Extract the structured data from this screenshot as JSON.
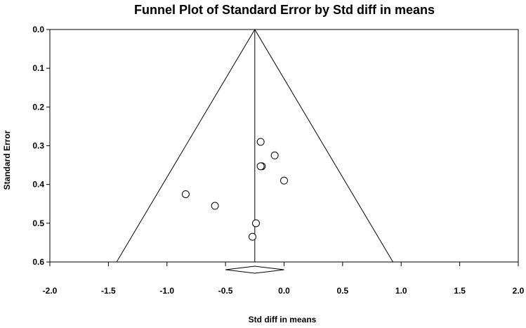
{
  "chart_data": {
    "type": "scatter",
    "title": "Funnel Plot of Standard Error by Std diff in means",
    "xlabel": "Std diff in means",
    "ylabel": "Standard Error",
    "xlim": [
      -2.0,
      2.0
    ],
    "ylim": [
      0.0,
      0.6
    ],
    "y_inverted": true,
    "grid": false,
    "x_ticks": [
      -2.0,
      -1.5,
      -1.0,
      -0.5,
      0.0,
      0.5,
      1.0,
      1.5,
      2.0
    ],
    "x_tick_labels": [
      "-2.0",
      "-1.5",
      "-1.0",
      "-0.5",
      "0.0",
      "0.5",
      "1.0",
      "1.5",
      "2.0"
    ],
    "y_ticks": [
      0.0,
      0.1,
      0.2,
      0.3,
      0.4,
      0.5,
      0.6
    ],
    "y_tick_labels": [
      "0.0",
      "0.1",
      "0.2",
      "0.3",
      "0.4",
      "0.5",
      "0.6"
    ],
    "summary_effect": -0.25,
    "funnel": {
      "apex": [
        -0.25,
        0.0
      ],
      "base_left": [
        -1.43,
        0.6
      ],
      "base_right": [
        0.93,
        0.6
      ]
    },
    "diamond": {
      "center": -0.25,
      "lower": -0.5,
      "upper": 0.0,
      "se": 0.62
    },
    "points": [
      {
        "x": -0.2,
        "y": 0.29
      },
      {
        "x": -0.08,
        "y": 0.325
      },
      {
        "x": -0.19,
        "y": 0.353
      },
      {
        "x": -0.2,
        "y": 0.353
      },
      {
        "x": 0.0,
        "y": 0.39
      },
      {
        "x": -0.84,
        "y": 0.425
      },
      {
        "x": -0.59,
        "y": 0.455
      },
      {
        "x": -0.24,
        "y": 0.5
      },
      {
        "x": -0.27,
        "y": 0.535
      }
    ],
    "colors": {
      "marker_fill": "#ffffff",
      "marker_stroke": "#000000",
      "line": "#000000"
    }
  }
}
